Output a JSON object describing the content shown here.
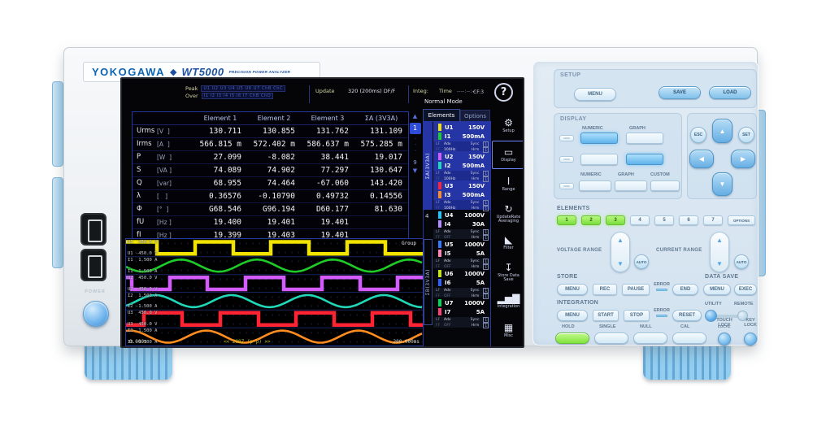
{
  "brand": {
    "name": "YOKOGAWA",
    "diamond": "◆",
    "model": "WT5000",
    "tagline": "PRECISION POWER ANALYZER"
  },
  "left_panel": {
    "power_label": "POWER"
  },
  "screen": {
    "status": {
      "peak_label": "Peak",
      "peak_channels": "U1 U2 U3 U4 U5 U6 U7 ChB ChC",
      "over_label": "Over",
      "over_channels": "I1 I2 I3 I4 I5 I6 I7 ChB ChD",
      "update_label": "Update",
      "update_value": "320 (200ms) DF/F",
      "integ_label": "Integ:",
      "time_label": "Time",
      "time_value": "----:--:--",
      "mode": "Normal Mode",
      "cf": "CF:3",
      "help": "?"
    },
    "table": {
      "columns": [
        "Element 1",
        "Element 2",
        "Element 3",
        "ΣA (3V3A)"
      ],
      "rows": [
        {
          "name": "Urms",
          "unit": "[V  ]",
          "v0": "130.711",
          "v1": "130.855",
          "v2": "131.762",
          "v3": "131.109"
        },
        {
          "name": "Irms",
          "unit": "[A  ]",
          "v0": "566.815 m",
          "v1": "572.402 m",
          "v2": "586.637 m",
          "v3": "575.285 m"
        },
        {
          "name": "P",
          "unit": "[W  ]",
          "v0": "27.099",
          "v1": "-8.082",
          "v2": "38.441",
          "v3": "19.017"
        },
        {
          "name": "S",
          "unit": "[VA ]",
          "v0": "74.089",
          "v1": "74.902",
          "v2": "77.297",
          "v3": "130.647"
        },
        {
          "name": "Q",
          "unit": "[var]",
          "v0": "68.955",
          "v1": "74.464",
          "v2": "-67.060",
          "v3": "143.420"
        },
        {
          "name": "λ",
          "unit": "[   ]",
          "v0": "0.36576",
          "v1": "-0.10790",
          "v2": "0.49732",
          "v3": "0.14556"
        },
        {
          "name": "Φ",
          "unit": "[°  ]",
          "v0": "G68.546",
          "v1": "G96.194",
          "v2": "D60.177",
          "v3": "81.630"
        },
        {
          "name": "fU",
          "unit": "[Hz ]",
          "v0": "19.400",
          "v1": "19.401",
          "v2": "19.401",
          "v3": ""
        },
        {
          "name": "fI",
          "unit": "[Hz ]",
          "v0": "19.399",
          "v1": "19.403",
          "v2": "19.401",
          "v3": ""
        }
      ],
      "pager": {
        "up": "▲",
        "current": "1",
        "dots": "···",
        "last": "9",
        "down": "▼"
      }
    },
    "waveform": {
      "type": "line",
      "group_label": "Group",
      "t_start": "0.000s",
      "span_label": "<< 200Z (p-p) >>",
      "t_end": "200.000ms",
      "cycles": 3.9,
      "traces": [
        {
          "ch": "U1",
          "max": "450.0 V",
          "min": "-450.0 V",
          "color": "#f2e400",
          "shape": "square",
          "phase": 0.1
        },
        {
          "ch": "I1",
          "max": "1.500 A",
          "min": "-1.500 A",
          "color": "#1ecc28",
          "shape": "sine",
          "phase": 0.53
        },
        {
          "ch": "U2",
          "max": "450.0 V",
          "min": "-450.0 V",
          "color": "#d45cff",
          "shape": "square",
          "phase": 0.433
        },
        {
          "ch": "I2",
          "max": "1.500 A",
          "min": "-1.500 A",
          "color": "#1fd8b8",
          "shape": "sine",
          "phase": 0.863
        },
        {
          "ch": "U3",
          "max": "450.0 V",
          "min": "-450.0 V",
          "color": "#ff2433",
          "shape": "square",
          "phase": 0.767
        },
        {
          "ch": "I3",
          "max": "1.500 A",
          "min": "-1.500 A",
          "color": "#ff8c1e",
          "shape": "sine",
          "phase": 0.196
        }
      ]
    },
    "elements_panel": {
      "tabs": {
        "elements": "Elements",
        "options": "Options"
      },
      "group_a_label": "ΣA(3V3A)",
      "group_b_label": "ΣB(3V3A)",
      "element4_tag": "4",
      "adv": {
        "lf": "LF",
        "ff": "FF",
        "adv": "Adv",
        "sync": "Sync",
        "hrm": "Hrm",
        "tag": "1"
      },
      "items": [
        {
          "u": "U1",
          "uval": "150V",
          "ucolor": "#f2e400",
          "i": "I1",
          "ival": "500mA",
          "icolor": "#1ecc28",
          "ff": "100Hz",
          "ffcolor": "#dfe2ea",
          "bg": "#2635a6",
          "advbg": "#1d2b8e"
        },
        {
          "u": "U2",
          "uval": "150V",
          "ucolor": "#d45cff",
          "i": "I2",
          "ival": "500mA",
          "icolor": "#1fd8b8",
          "ff": "100Hz",
          "ffcolor": "#dfe2ea",
          "bg": "#2635a6",
          "advbg": "#1d2b8e"
        },
        {
          "u": "U3",
          "uval": "150V",
          "ucolor": "#ff2433",
          "i": "I3",
          "ival": "500mA",
          "icolor": "#ff8c1e",
          "ff": "100Hz",
          "ffcolor": "#dfe2ea",
          "bg": "#2635a6",
          "advbg": "#1d2b8e"
        },
        {
          "u": "U4",
          "uval": "1000V",
          "ucolor": "#18c8ff",
          "i": "I4",
          "ival": "30A",
          "icolor": "#b48cff",
          "ff": "OFF",
          "ffcolor": "#6a7498",
          "bg": "#06070c",
          "advbg": "#10141f"
        },
        {
          "u": "U5",
          "uval": "1000V",
          "ucolor": "#2e7bff",
          "i": "I5",
          "ival": "5A",
          "icolor": "#ff85b5",
          "ff": "OFF",
          "ffcolor": "#6a7498",
          "bg": "#06070c",
          "advbg": "#10141f"
        },
        {
          "u": "U6",
          "uval": "1000V",
          "ucolor": "#c6e800",
          "i": "I6",
          "ival": "5A",
          "icolor": "#2e5fff",
          "ff": "OFF",
          "ffcolor": "#6a7498",
          "bg": "#06070c",
          "advbg": "#10141f"
        },
        {
          "u": "U7",
          "uval": "1000V",
          "ucolor": "#00d855",
          "i": "I7",
          "ival": "5A",
          "icolor": "#ff3f77",
          "ff": "OFF",
          "ffcolor": "#6a7498",
          "bg": "#06070c",
          "advbg": "#10141f"
        }
      ]
    },
    "icon_bar": [
      {
        "icon_name": "setup-gear-icon",
        "glyph": "⚙",
        "label": "Setup",
        "bcolor": "transparent"
      },
      {
        "icon_name": "display-icon",
        "glyph": "▭",
        "label": "Display",
        "bcolor": "#6f86ff"
      },
      {
        "icon_name": "range-icon",
        "glyph": "I",
        "label": "Range",
        "bcolor": "transparent"
      },
      {
        "icon_name": "update-rate-icon",
        "glyph": "↻",
        "label": "UpdateRate Averaging",
        "bcolor": "transparent"
      },
      {
        "icon_name": "filter-icon",
        "glyph": "◣",
        "label": "Filter",
        "bcolor": "transparent"
      },
      {
        "icon_name": "store-data-save-icon",
        "glyph": "↧",
        "label": "Store Data Save",
        "bcolor": "transparent"
      },
      {
        "icon_name": "integration-chart-icon",
        "glyph": "▂▅▇",
        "label": "Integration",
        "bcolor": "transparent"
      },
      {
        "icon_name": "misc-toolbox-icon",
        "glyph": "▦",
        "label": "Misc",
        "bcolor": "transparent"
      }
    ]
  },
  "control_panel": {
    "setup": {
      "label": "SETUP",
      "menu": "MENU",
      "save": "SAVE",
      "load": "LOAD"
    },
    "display": {
      "label": "DISPLAY",
      "numeric1": "NUMERIC",
      "graph1": "GRAPH",
      "numeric2": "NUMERIC",
      "graph2": "GRAPH",
      "custom": "CUSTOM"
    },
    "nav": {
      "esc": "ESC",
      "set": "SET",
      "up": "▲",
      "down": "▼",
      "left": "◀",
      "right": "▶"
    },
    "elements": {
      "label": "ELEMENTS",
      "b1": "1",
      "b2": "2",
      "b3": "3",
      "b4": "4",
      "b5": "5",
      "b6": "6",
      "b7": "7",
      "options": "OPTIONS"
    },
    "ranges": {
      "voltage": "VOLTAGE RANGE",
      "current": "CURRENT RANGE",
      "auto": "AUTO",
      "up": "▲",
      "down": "▼"
    },
    "store": {
      "label": "STORE",
      "menu": "MENU",
      "rec": "REC",
      "pause": "PAUSE",
      "error": "ERROR",
      "end": "END"
    },
    "data_save": {
      "label": "DATA SAVE",
      "menu": "MENU",
      "exec": "EXEC"
    },
    "integration": {
      "label": "INTEGRATION",
      "menu": "MENU",
      "start": "START",
      "stop": "STOP",
      "error": "ERROR",
      "reset": "RESET"
    },
    "utility": {
      "utility": "UTILITY",
      "remote": "REMOTE",
      "local": "LOCAL"
    },
    "hold": "HOLD",
    "single": "SINGLE",
    "null_btn": "NULL",
    "cal": "CAL",
    "touch_lock_1": "TOUCH",
    "touch_lock_2": "LOCK",
    "key_lock_1": "KEY",
    "key_lock_2": "LOCK"
  }
}
